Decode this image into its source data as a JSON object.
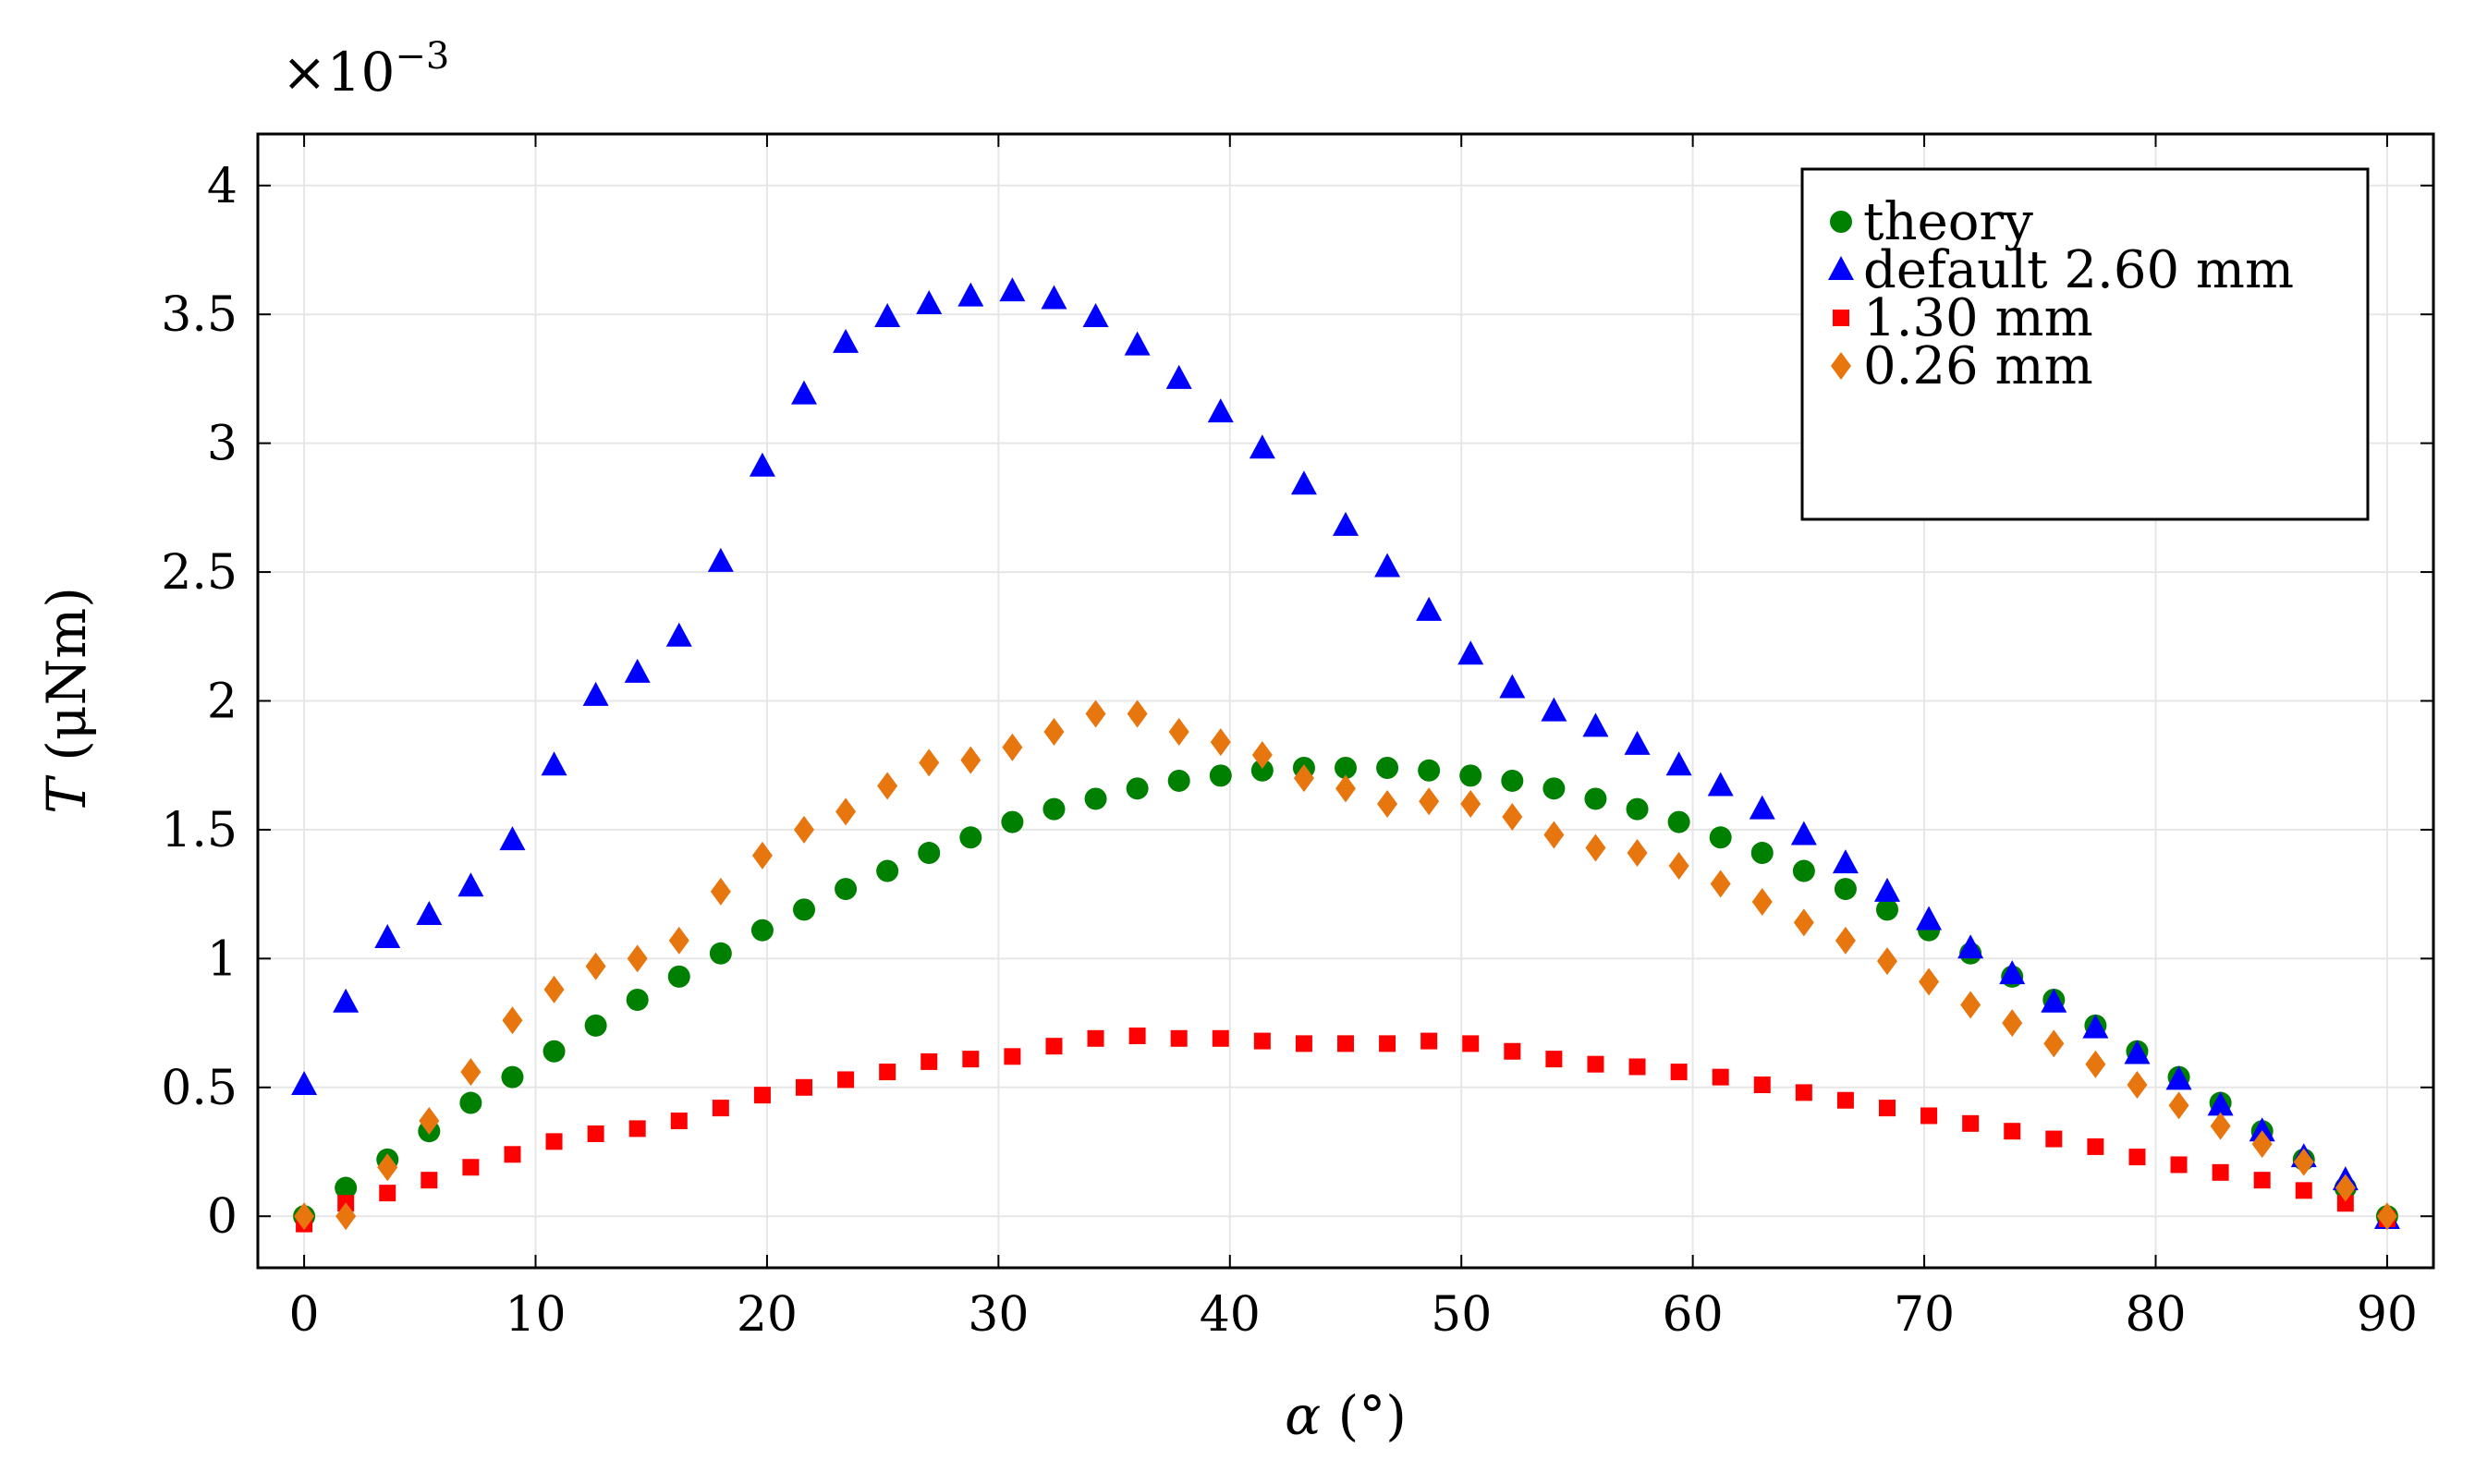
{
  "chart_data": {
    "type": "scatter",
    "title": "",
    "xlabel": "α (°)",
    "ylabel": "T (μNm)",
    "ylabel_var": "T",
    "ylabel_unit": " (μNm)",
    "xlabel_var": "α",
    "xlabel_unit": " (°)",
    "y_multiplier_base": "×10",
    "y_multiplier_exp": "−3",
    "xlim": [
      -2,
      92
    ],
    "ylim": [
      -0.2,
      4.2
    ],
    "xticks": [
      0,
      10,
      20,
      30,
      40,
      50,
      60,
      70,
      80,
      90
    ],
    "xtick_labels": [
      "0",
      "10",
      "20",
      "30",
      "40",
      "50",
      "60",
      "70",
      "80",
      "90"
    ],
    "yticks": [
      0,
      0.5,
      1,
      1.5,
      2,
      2.5,
      3,
      3.5,
      4
    ],
    "ytick_labels": [
      "0",
      "0.5",
      "1",
      "1.5",
      "2",
      "2.5",
      "3",
      "3.5",
      "4"
    ],
    "grid": true,
    "legend_position": "top-right",
    "x": [
      0,
      1.8,
      3.6,
      5.4,
      7.2,
      9,
      10.8,
      12.6,
      14.4,
      16.2,
      18,
      19.8,
      21.6,
      23.4,
      25.2,
      27,
      28.8,
      30.6,
      32.4,
      34.2,
      36,
      37.8,
      39.6,
      41.4,
      43.2,
      45,
      46.8,
      48.6,
      50.4,
      52.2,
      54,
      55.8,
      57.6,
      59.4,
      61.2,
      63,
      64.8,
      66.6,
      68.4,
      70.2,
      72,
      73.8,
      75.6,
      77.4,
      79.2,
      81,
      82.8,
      84.6,
      86.4,
      88.2,
      90
    ],
    "series": [
      {
        "name": "theory",
        "color": "#008000",
        "marker": "circle",
        "values": [
          0,
          0.11,
          0.22,
          0.33,
          0.44,
          0.54,
          0.64,
          0.74,
          0.84,
          0.93,
          1.02,
          1.11,
          1.19,
          1.27,
          1.34,
          1.41,
          1.47,
          1.53,
          1.58,
          1.62,
          1.66,
          1.69,
          1.71,
          1.73,
          1.74,
          1.74,
          1.74,
          1.73,
          1.71,
          1.69,
          1.66,
          1.62,
          1.58,
          1.53,
          1.47,
          1.41,
          1.34,
          1.27,
          1.19,
          1.11,
          1.02,
          0.93,
          0.84,
          0.74,
          0.64,
          0.54,
          0.44,
          0.33,
          0.22,
          0.11,
          0
        ]
      },
      {
        "name": "default 2.60 mm",
        "color": "#0000ff",
        "marker": "triangle",
        "values": [
          0.51,
          0.83,
          1.08,
          1.17,
          1.28,
          1.46,
          1.75,
          2.02,
          2.11,
          2.25,
          2.54,
          2.91,
          3.19,
          3.39,
          3.49,
          3.54,
          3.57,
          3.59,
          3.56,
          3.49,
          3.38,
          3.25,
          3.12,
          2.98,
          2.84,
          2.68,
          2.52,
          2.35,
          2.18,
          2.05,
          1.96,
          1.9,
          1.83,
          1.75,
          1.67,
          1.58,
          1.48,
          1.37,
          1.26,
          1.15,
          1.04,
          0.94,
          0.83,
          0.73,
          0.63,
          0.53,
          0.43,
          0.33,
          0.23,
          0.14,
          -0.01
        ]
      },
      {
        "name": "1.30 mm",
        "color": "#ff0000",
        "marker": "square",
        "values": [
          -0.03,
          0.05,
          0.09,
          0.14,
          0.19,
          0.24,
          0.29,
          0.32,
          0.34,
          0.37,
          0.42,
          0.47,
          0.5,
          0.53,
          0.56,
          0.6,
          0.61,
          0.62,
          0.66,
          0.69,
          0.7,
          0.69,
          0.69,
          0.68,
          0.67,
          0.67,
          0.67,
          0.68,
          0.67,
          0.64,
          0.61,
          0.59,
          0.58,
          0.56,
          0.54,
          0.51,
          0.48,
          0.45,
          0.42,
          0.39,
          0.36,
          0.33,
          0.3,
          0.27,
          0.23,
          0.2,
          0.17,
          0.14,
          0.1,
          0.05,
          -0.01
        ]
      },
      {
        "name": "0.26 mm",
        "color": "#e8760f",
        "marker": "diamond",
        "values": [
          0,
          0,
          0.19,
          0.37,
          0.56,
          0.76,
          0.88,
          0.97,
          1.0,
          1.07,
          1.26,
          1.4,
          1.5,
          1.57,
          1.67,
          1.76,
          1.77,
          1.82,
          1.88,
          1.95,
          1.95,
          1.88,
          1.84,
          1.79,
          1.7,
          1.66,
          1.6,
          1.61,
          1.6,
          1.55,
          1.48,
          1.43,
          1.41,
          1.36,
          1.29,
          1.22,
          1.14,
          1.07,
          0.99,
          0.91,
          0.82,
          0.75,
          0.67,
          0.59,
          0.51,
          0.43,
          0.35,
          0.28,
          0.21,
          0.11,
          0
        ]
      }
    ]
  }
}
